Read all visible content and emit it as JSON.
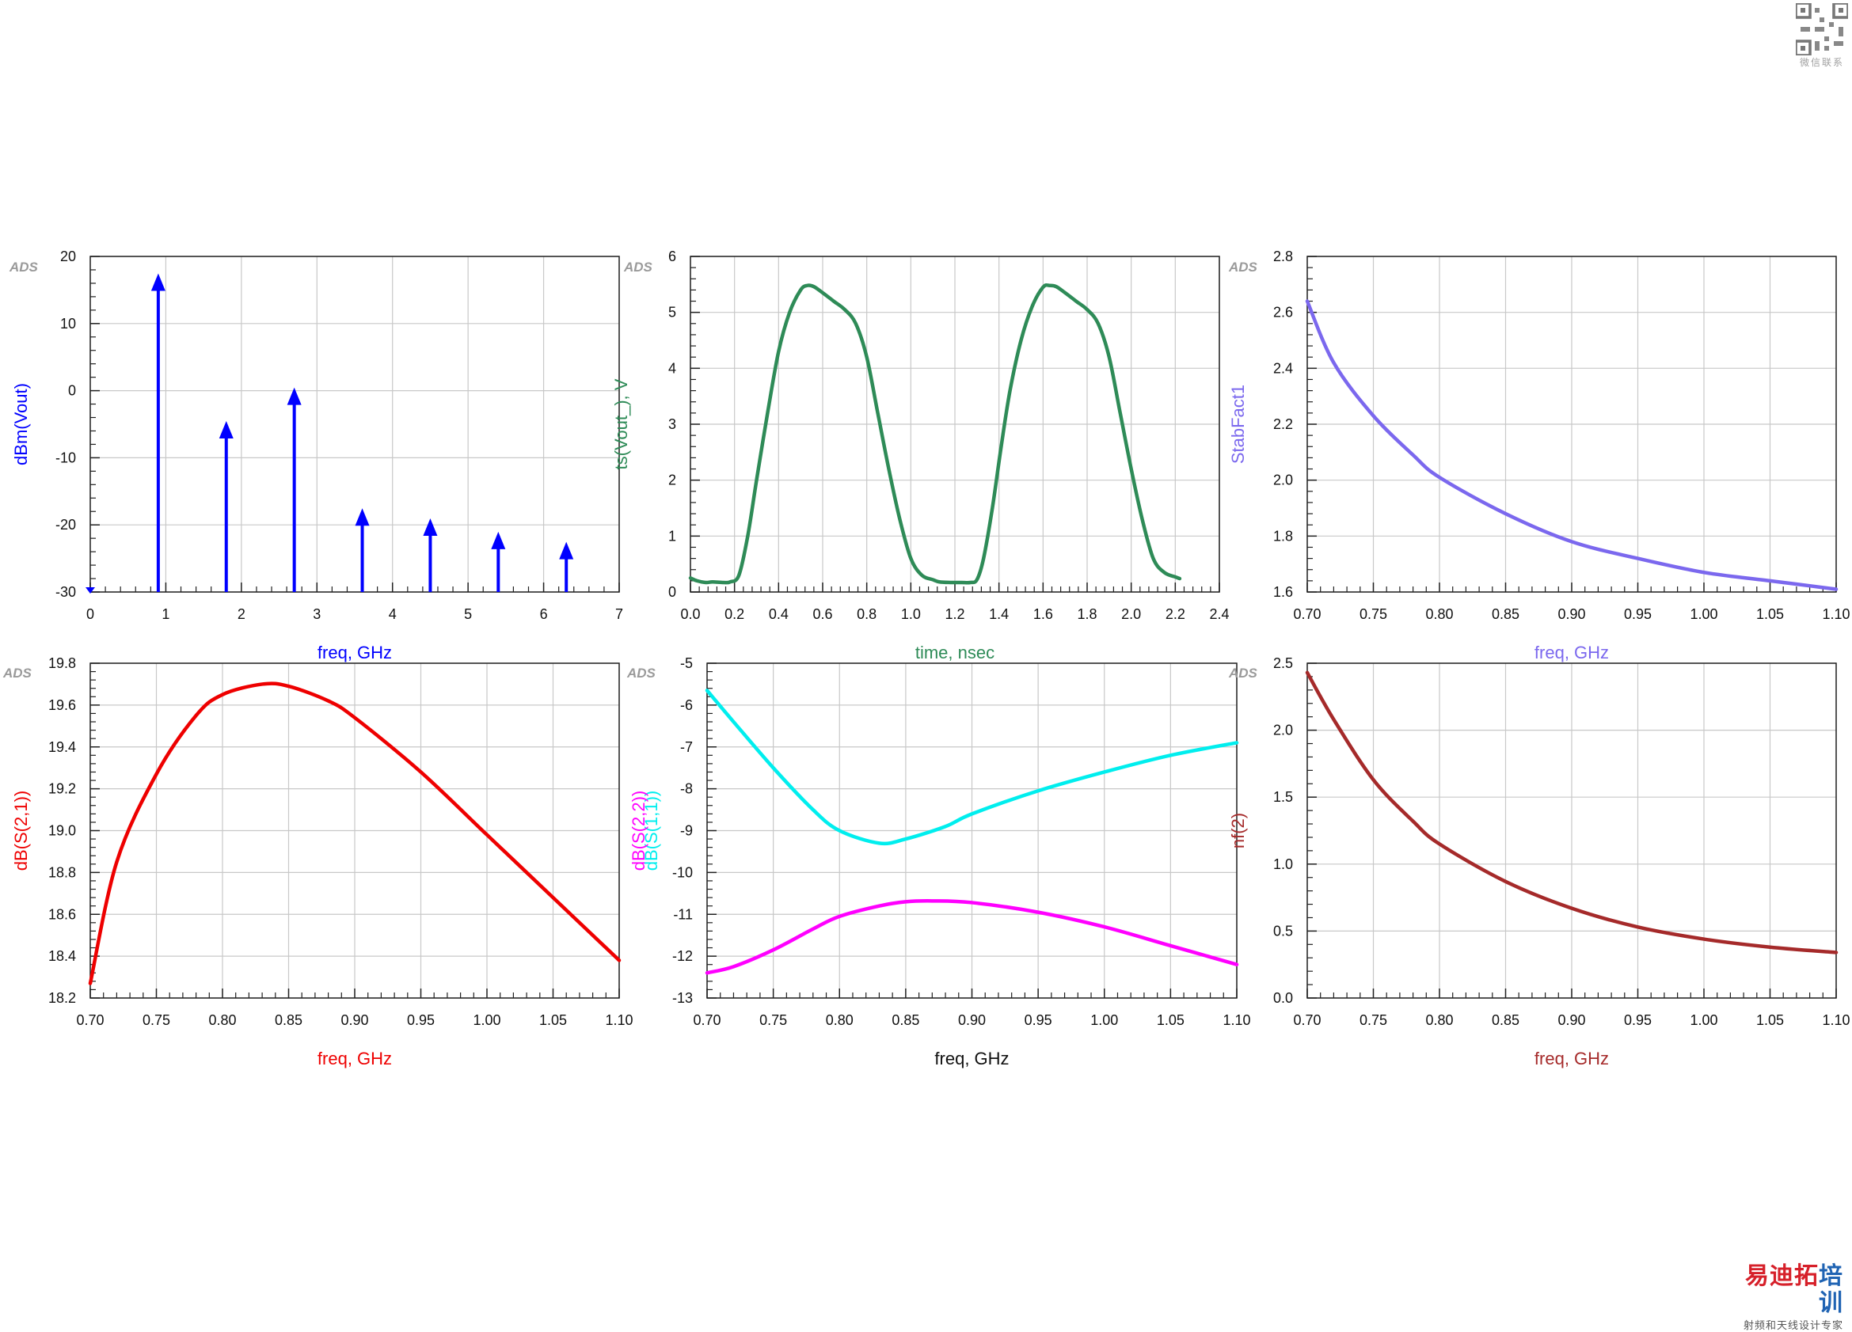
{
  "ads_label": "ADS",
  "qr_caption": "微信联系",
  "watermark": {
    "main_red": "易迪拓",
    "main_blue": "培训",
    "sub": "射频和天线设计专家"
  },
  "chart_data": [
    {
      "id": "spectrum",
      "type": "bar",
      "style": "stem-arrow",
      "color": "#0000ff",
      "xlabel": "freq, GHz",
      "ylabel": "dBm(Vout)",
      "xlim": [
        0,
        7
      ],
      "ylim": [
        -30,
        20
      ],
      "xticks": [
        "0",
        "1",
        "2",
        "3",
        "4",
        "5",
        "6",
        "7"
      ],
      "yticks": [
        "-30",
        "-20",
        "-10",
        "0",
        "10",
        "20"
      ],
      "x": [
        0,
        0.9,
        1.8,
        2.7,
        3.6,
        4.5,
        5.4,
        6.3
      ],
      "values": [
        -30,
        17,
        -5,
        0,
        -18,
        -19.5,
        -21.5,
        -23
      ],
      "grid": true
    },
    {
      "id": "time",
      "type": "line",
      "color": "#2e8b57",
      "xlabel": "time, nsec",
      "ylabel": "ts(Vout_), V",
      "xlim": [
        0,
        2.4
      ],
      "ylim": [
        0,
        6
      ],
      "xticks": [
        "0.0",
        "0.2",
        "0.4",
        "0.6",
        "0.8",
        "1.0",
        "1.2",
        "1.4",
        "1.6",
        "1.8",
        "2.0",
        "2.2",
        "2.4"
      ],
      "yticks": [
        "0",
        "1",
        "2",
        "3",
        "4",
        "5",
        "6"
      ],
      "series": [
        {
          "x": [
            0.0,
            0.03,
            0.07,
            0.1,
            0.15,
            0.18,
            0.22,
            0.26,
            0.3,
            0.35,
            0.4,
            0.45,
            0.5,
            0.53,
            0.56,
            0.6,
            0.65,
            0.7,
            0.75,
            0.8,
            0.85,
            0.9,
            0.95,
            1.0,
            1.05,
            1.1,
            1.13,
            1.18,
            1.23,
            1.27,
            1.3,
            1.33,
            1.37,
            1.41,
            1.45,
            1.5,
            1.55,
            1.6,
            1.63,
            1.66,
            1.7,
            1.75,
            1.8,
            1.85,
            1.9,
            1.95,
            2.0,
            2.05,
            2.1,
            2.15,
            2.2,
            2.22
          ],
          "y": [
            0.25,
            0.2,
            0.17,
            0.18,
            0.17,
            0.18,
            0.3,
            1.0,
            2.0,
            3.2,
            4.3,
            5.0,
            5.4,
            5.48,
            5.46,
            5.35,
            5.2,
            5.05,
            4.8,
            4.2,
            3.2,
            2.2,
            1.3,
            0.6,
            0.3,
            0.22,
            0.18,
            0.17,
            0.17,
            0.17,
            0.22,
            0.6,
            1.5,
            2.6,
            3.6,
            4.5,
            5.1,
            5.45,
            5.48,
            5.46,
            5.35,
            5.2,
            5.05,
            4.8,
            4.2,
            3.2,
            2.2,
            1.3,
            0.6,
            0.35,
            0.27,
            0.24
          ]
        }
      ],
      "grid": true
    },
    {
      "id": "stab",
      "type": "line",
      "color": "#7b68ee",
      "xlabel": "freq, GHz",
      "ylabel": "StabFact1",
      "xlim": [
        0.7,
        1.1
      ],
      "ylim": [
        1.6,
        2.8
      ],
      "xticks": [
        "0.70",
        "0.75",
        "0.80",
        "0.85",
        "0.90",
        "0.95",
        "1.00",
        "1.05",
        "1.10"
      ],
      "yticks": [
        "1.6",
        "1.8",
        "2.0",
        "2.2",
        "2.4",
        "2.6",
        "2.8"
      ],
      "series": [
        {
          "x": [
            0.7,
            0.72,
            0.75,
            0.78,
            0.8,
            0.85,
            0.9,
            0.95,
            1.0,
            1.05,
            1.1
          ],
          "y": [
            2.64,
            2.42,
            2.23,
            2.09,
            2.01,
            1.88,
            1.78,
            1.72,
            1.67,
            1.64,
            1.61
          ]
        }
      ],
      "grid": true
    },
    {
      "id": "s21",
      "type": "line",
      "color": "#ee0000",
      "xlabel": "freq, GHz",
      "ylabel": "dB(S(2,1))",
      "xlim": [
        0.7,
        1.1
      ],
      "ylim": [
        18.2,
        19.8
      ],
      "xticks": [
        "0.70",
        "0.75",
        "0.80",
        "0.85",
        "0.90",
        "0.95",
        "1.00",
        "1.05",
        "1.10"
      ],
      "yticks": [
        "18.2",
        "18.4",
        "18.6",
        "18.8",
        "19.0",
        "19.2",
        "19.4",
        "19.6",
        "19.8"
      ],
      "series": [
        {
          "x": [
            0.7,
            0.72,
            0.75,
            0.78,
            0.8,
            0.83,
            0.85,
            0.88,
            0.9,
            0.95,
            1.0,
            1.05,
            1.1
          ],
          "y": [
            18.27,
            18.85,
            19.27,
            19.55,
            19.65,
            19.7,
            19.69,
            19.62,
            19.54,
            19.28,
            18.98,
            18.68,
            18.38
          ]
        }
      ],
      "grid": true
    },
    {
      "id": "s11s22",
      "type": "line",
      "xlabel": "freq, GHz",
      "ylabel": "",
      "ylabels": [
        {
          "text": "dB(S(1,1))",
          "color": "#00eeee"
        },
        {
          "text": "dB(S(2,2))",
          "color": "#ff00ff"
        }
      ],
      "xlim": [
        0.7,
        1.1
      ],
      "ylim": [
        -13,
        -5
      ],
      "xticks": [
        "0.70",
        "0.75",
        "0.80",
        "0.85",
        "0.90",
        "0.95",
        "1.00",
        "1.05",
        "1.10"
      ],
      "yticks": [
        "-13",
        "-12",
        "-11",
        "-10",
        "-9",
        "-8",
        "-7",
        "-6",
        "-5"
      ],
      "series": [
        {
          "name": "dB(S(1,1))",
          "color": "#00eeee",
          "x": [
            0.7,
            0.72,
            0.75,
            0.78,
            0.8,
            0.83,
            0.85,
            0.88,
            0.9,
            0.95,
            1.0,
            1.05,
            1.1
          ],
          "y": [
            -5.65,
            -6.4,
            -7.5,
            -8.5,
            -9.0,
            -9.3,
            -9.2,
            -8.9,
            -8.6,
            -8.05,
            -7.6,
            -7.2,
            -6.9
          ]
        },
        {
          "name": "dB(S(2,2))",
          "color": "#ff00ff",
          "x": [
            0.7,
            0.72,
            0.75,
            0.78,
            0.8,
            0.83,
            0.85,
            0.87,
            0.9,
            0.95,
            1.0,
            1.05,
            1.1
          ],
          "y": [
            -12.4,
            -12.25,
            -11.85,
            -11.35,
            -11.05,
            -10.8,
            -10.7,
            -10.68,
            -10.72,
            -10.95,
            -11.3,
            -11.75,
            -12.2
          ]
        }
      ],
      "grid": true
    },
    {
      "id": "nf",
      "type": "line",
      "color": "#a52a2a",
      "xlabel": "freq, GHz",
      "ylabel": "nf(2)",
      "xlim": [
        0.7,
        1.1
      ],
      "ylim": [
        0,
        2.5
      ],
      "xticks": [
        "0.70",
        "0.75",
        "0.80",
        "0.85",
        "0.90",
        "0.95",
        "1.00",
        "1.05",
        "1.10"
      ],
      "yticks": [
        "0.0",
        "0.5",
        "1.0",
        "1.5",
        "2.0",
        "2.5"
      ],
      "series": [
        {
          "x": [
            0.7,
            0.72,
            0.75,
            0.78,
            0.8,
            0.85,
            0.9,
            0.95,
            1.0,
            1.05,
            1.1
          ],
          "y": [
            2.43,
            2.08,
            1.63,
            1.32,
            1.15,
            0.87,
            0.67,
            0.53,
            0.44,
            0.38,
            0.34
          ]
        }
      ],
      "grid": true
    }
  ]
}
